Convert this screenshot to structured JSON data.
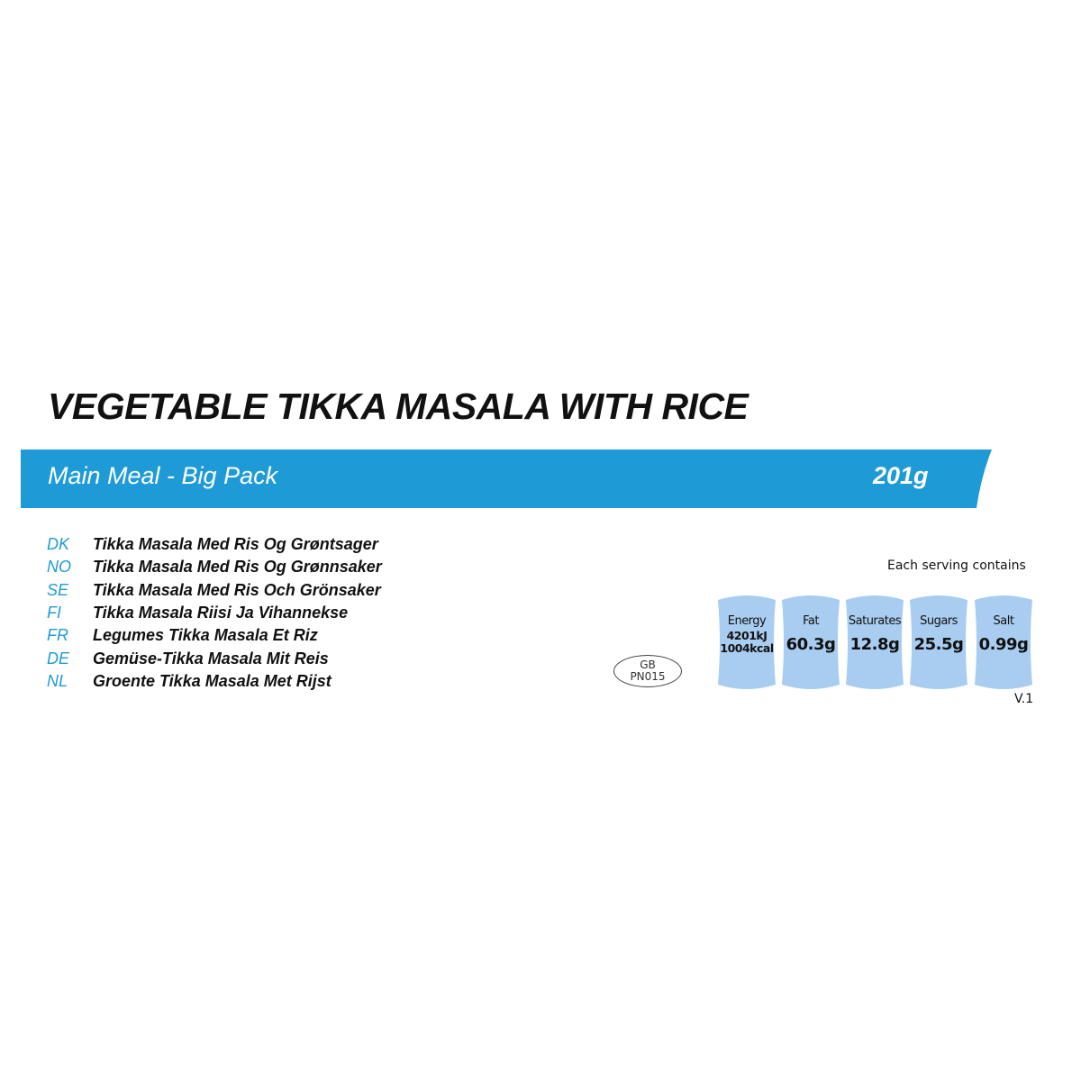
{
  "title": "VEGETABLE TIKKA MASALA WITH RICE",
  "banner": {
    "label": "Main Meal - Big Pack",
    "weight": "201g",
    "color": "#1e9bd7"
  },
  "languages": [
    {
      "code": "DK",
      "name": "Tikka Masala Med Ris Og Grøntsager"
    },
    {
      "code": "NO",
      "name": "Tikka Masala Med Ris Og Grønnsaker"
    },
    {
      "code": "SE",
      "name": "Tikka Masala Med Ris Och Grönsaker"
    },
    {
      "code": "FI",
      "name": "Tikka Masala Riisi Ja Vihannekse"
    },
    {
      "code": "FR",
      "name": "Legumes Tikka Masala Et Riz"
    },
    {
      "code": "DE",
      "name": "Gemüse-Tikka Masala Mit Reis"
    },
    {
      "code": "NL",
      "name": "Groente Tikka Masala Met Rijst"
    }
  ],
  "approval": {
    "line1": "GB",
    "line2": "PN015"
  },
  "nutrition": {
    "heading": "Each serving contains",
    "energy": {
      "label": "Energy",
      "kj": "4201kJ",
      "kcal": "1004kcal"
    },
    "items": [
      {
        "label": "Fat",
        "value": "60.3g"
      },
      {
        "label": "Saturates",
        "value": "12.8g"
      },
      {
        "label": "Sugars",
        "value": "25.5g"
      },
      {
        "label": "Salt",
        "value": "0.99g"
      }
    ],
    "box_color": "#a9cdf0"
  },
  "version": "V.1"
}
